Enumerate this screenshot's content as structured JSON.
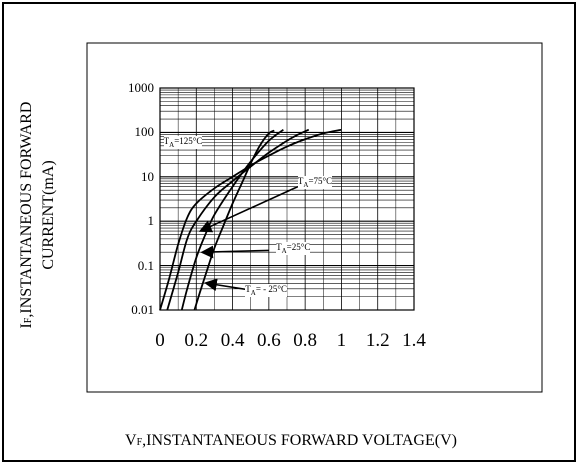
{
  "chart_data": {
    "type": "line",
    "xlabel_main": "V",
    "xlabel_sub": "F",
    "xlabel_rest": ",INSTANTANEOUS FORWARD VOLTAGE(V)",
    "ylabel_main": "I",
    "ylabel_sub": "F",
    "ylabel_rest": ",INSTANTANEOUS FORWARD",
    "ylabel_line2": "CURRENT(mA)",
    "xlim": [
      0,
      1.4
    ],
    "ylim": [
      0.01,
      1000
    ],
    "yscale": "log",
    "grid": true,
    "x_ticks": [
      "0",
      "0.2",
      "0.4",
      "0.6",
      "0.8",
      "1",
      "1.2",
      "1.4"
    ],
    "y_ticks": [
      "1000",
      "100",
      "10",
      "1",
      "0.1",
      "0.01"
    ],
    "series": [
      {
        "name": "TA=125°C",
        "label_main": "T",
        "label_sub": "A",
        "label_rest": "=125°C",
        "x": [
          0.0,
          0.05,
          0.1,
          0.15,
          0.2,
          0.3,
          0.4,
          0.5,
          0.6,
          0.7,
          0.8,
          0.9,
          1.0
        ],
        "y": [
          0.01,
          0.05,
          0.3,
          1.2,
          2.5,
          5.5,
          10,
          18,
          30,
          48,
          70,
          95,
          115
        ]
      },
      {
        "name": "TA=75°C",
        "label_main": "T",
        "label_sub": "A",
        "label_rest": "=75°C",
        "x": [
          0.04,
          0.1,
          0.15,
          0.2,
          0.3,
          0.4,
          0.5,
          0.6,
          0.7,
          0.75,
          0.82
        ],
        "y": [
          0.01,
          0.07,
          0.4,
          1.0,
          3.5,
          8,
          17,
          35,
          65,
          85,
          115
        ]
      },
      {
        "name": "TA=25°C",
        "label_main": "T",
        "label_sub": "A",
        "label_rest": "=25°C",
        "x": [
          0.12,
          0.15,
          0.2,
          0.25,
          0.3,
          0.4,
          0.5,
          0.6,
          0.68
        ],
        "y": [
          0.01,
          0.03,
          0.15,
          0.5,
          1.4,
          6,
          22,
          65,
          115
        ]
      },
      {
        "name": "TA=-25°C",
        "label_main": "T",
        "label_sub": "A",
        "label_rest": "= - 25°C",
        "x": [
          0.19,
          0.22,
          0.26,
          0.3,
          0.35,
          0.4,
          0.45,
          0.5,
          0.55,
          0.6,
          0.63
        ],
        "y": [
          0.01,
          0.025,
          0.08,
          0.25,
          0.8,
          2.5,
          7,
          20,
          50,
          95,
          110
        ]
      }
    ],
    "arrows": [
      {
        "series": "TA=75°C",
        "from": [
          0.76,
          6.0
        ],
        "to": [
          0.23,
          0.62
        ]
      },
      {
        "series": "TA=25°C",
        "from": [
          0.6,
          0.22
        ],
        "to": [
          0.24,
          0.2
        ]
      },
      {
        "series": "TA=-25°C",
        "from": [
          0.55,
          0.026
        ],
        "to": [
          0.26,
          0.04
        ]
      }
    ]
  },
  "colors": {
    "line": "#000000",
    "axis": "#000000",
    "grid": "#000000"
  }
}
